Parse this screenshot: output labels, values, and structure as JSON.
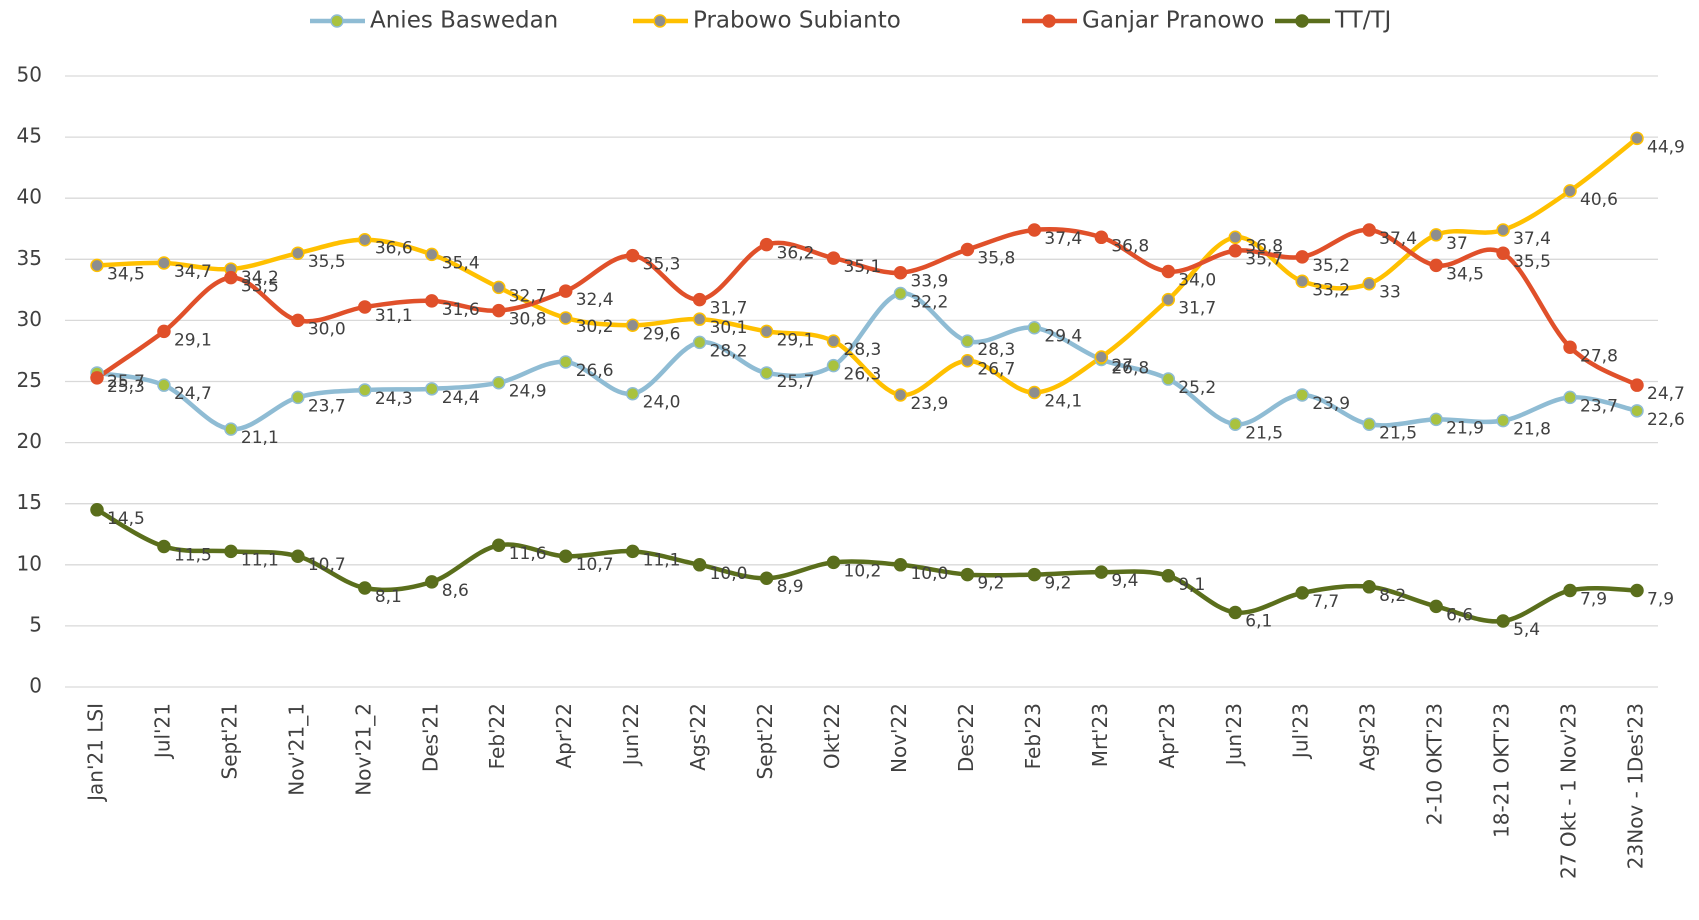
{
  "chart_data": {
    "type": "line",
    "categories": [
      "Jan'21 LSI",
      "Jul'21",
      "Sept'21",
      "Nov'21_1",
      "Nov'21_2",
      "Des'21",
      "Feb'22",
      "Apr'22",
      "Jun'22",
      "Ags'22",
      "Sept'22",
      "Okt'22",
      "Nov'22",
      "Des'22",
      "Feb'23",
      "Mrt'23",
      "Apr'23",
      "Jun'23",
      "Jul'23",
      "Ags'23",
      "2-10 OKT'23",
      "18-21 OKT'23",
      "27 Okt - 1 Nov'23",
      "23Nov - 1Des'23"
    ],
    "series": [
      {
        "name": "Anies Baswedan",
        "color": "#8fbcd4",
        "marker": "#a9c23f",
        "values": [
          25.7,
          24.7,
          21.1,
          23.7,
          24.3,
          24.4,
          24.9,
          26.6,
          24.0,
          28.2,
          25.7,
          26.3,
          32.2,
          28.3,
          29.4,
          26.8,
          25.2,
          21.5,
          23.9,
          21.5,
          21.9,
          21.8,
          23.7,
          22.6
        ],
        "value_labels": [
          "25,7",
          "24,7",
          "21,1",
          "23,7",
          "24,3",
          "24,4",
          "24,9",
          "26,6",
          "24,0",
          "28,2",
          "25,7",
          "26,3",
          "32,2",
          "28,3",
          "29,4",
          "26,8",
          "25,2",
          "21,5",
          "23,9",
          "21,5",
          "21,9",
          "21,8",
          "23,7",
          "22,6"
        ]
      },
      {
        "name": "Prabowo Subianto",
        "color": "#ffc000",
        "marker": "#8e8e8e",
        "values": [
          34.5,
          34.7,
          34.2,
          35.5,
          36.6,
          35.4,
          32.7,
          30.2,
          29.6,
          30.1,
          29.1,
          28.3,
          23.9,
          26.7,
          24.1,
          27,
          31.7,
          36.8,
          33.2,
          33,
          37,
          37.4,
          40.6,
          44.9
        ],
        "value_labels": [
          "34,5",
          "34,7",
          "34,2",
          "35,5",
          "36,6",
          "35,4",
          "32,7",
          "30,2",
          "29,6",
          "30,1",
          "29,1",
          "28,3",
          "23,9",
          "26,7",
          "24,1",
          "27",
          "31,7",
          "36,8",
          "33,2",
          "33",
          "37",
          "37,4",
          "40,6",
          "44,9"
        ]
      },
      {
        "name": "Ganjar Pranowo",
        "color": "#e0502a",
        "marker": "#e0502a",
        "values": [
          25.3,
          29.1,
          33.5,
          30.0,
          31.1,
          31.6,
          30.8,
          32.4,
          35.3,
          31.7,
          36.2,
          35.1,
          33.9,
          35.8,
          37.4,
          36.8,
          34.0,
          35.7,
          35.2,
          37.4,
          34.5,
          35.5,
          27.8,
          24.7
        ],
        "value_labels": [
          "25,3",
          "29,1",
          "33,5",
          "30,0",
          "31,1",
          "31,6",
          "30,8",
          "32,4",
          "35,3",
          "31,7",
          "36,2",
          "35,1",
          "33,9",
          "35,8",
          "37,4",
          "36,8",
          "34,0",
          "35,7",
          "35,2",
          "37,4",
          "34,5",
          "35,5",
          "27,8",
          "24,7"
        ]
      },
      {
        "name": "TT/TJ",
        "color": "#5a6e1c",
        "marker": "#5a6e1c",
        "values": [
          14.5,
          11.5,
          11.1,
          10.7,
          8.1,
          8.6,
          11.6,
          10.7,
          11.1,
          10.0,
          8.9,
          10.2,
          10.0,
          9.2,
          9.2,
          9.4,
          9.1,
          6.1,
          7.7,
          8.2,
          6.6,
          5.4,
          7.9,
          7.9
        ],
        "value_labels": [
          "14,5",
          "11,5",
          "11,1",
          "10,7",
          "8,1",
          "8,6",
          "11,6",
          "10,7",
          "11,1",
          "10,0",
          "8,9",
          "10,2",
          "10,0",
          "9,2",
          "9,2",
          "9,4",
          "9,1",
          "6,1",
          "7,7",
          "8,2",
          "6,6",
          "5,4",
          "7,9",
          "7,9"
        ]
      }
    ],
    "ylim": [
      0,
      50
    ],
    "yticks": [
      0,
      5,
      10,
      15,
      20,
      25,
      30,
      35,
      40,
      45,
      50
    ],
    "grid": true,
    "legend": "top"
  }
}
